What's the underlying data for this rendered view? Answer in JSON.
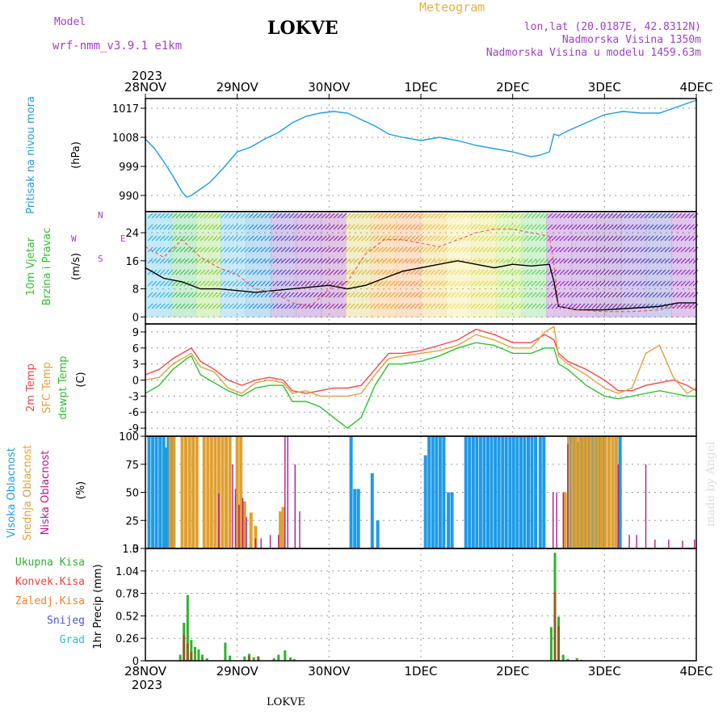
{
  "header": {
    "model_label": "Model",
    "model_name": "wrf-nmm_v3.9.1 e1km",
    "station": "LOKVE",
    "product": "Meteogram",
    "lonlat": "lon,lat (20.0187E, 42.8312N)",
    "elevation": "Nadmorska Visina 1350m",
    "model_elevation": "Nadmorska Visina u modelu 1459.63m",
    "footer": "LOKVE",
    "side_note": "made by Angel"
  },
  "colors": {
    "pressure": "#1e9be6",
    "t2m": "#f04848",
    "tsfc": "#e0a040",
    "dewpt": "#30c030",
    "high_cloud": "#1e9be6",
    "mid_cloud": "#e0a030",
    "low_cloud": "#b01c8c",
    "total_precip": "#30b030",
    "conv_precip": "#f04040",
    "frz_precip": "#f08030",
    "snow": "#5050e0",
    "grad": "#30c0c0"
  },
  "chart_data": [
    {
      "type": "line",
      "panel": "pressure",
      "x_labels_top": [
        "28NOV",
        "29NOV",
        "30NOV",
        "1DEC",
        "2DEC",
        "3DEC",
        "4DEC"
      ],
      "x_labels_bottom": [
        "28NOV",
        "29NOV",
        "30NOV",
        "1DEC",
        "2DEC",
        "3DEC",
        "4DEC"
      ],
      "year_label": "2023",
      "ylabel_left": "Pritisak na nivou mora",
      "unit": "(hPa)",
      "yticks": [
        990,
        999,
        1008,
        1017
      ],
      "ylim": [
        985,
        1020
      ],
      "xlim": [
        0,
        6
      ],
      "series": [
        {
          "name": "Pritisak na nivou mora",
          "x": [
            0,
            0.1,
            0.2,
            0.3,
            0.4,
            0.45,
            0.5,
            0.6,
            0.7,
            0.85,
            1.0,
            1.15,
            1.3,
            1.45,
            1.6,
            1.75,
            1.9,
            2.05,
            2.2,
            2.35,
            2.5,
            2.65,
            2.8,
            3.0,
            3.2,
            3.4,
            3.6,
            3.8,
            4.0,
            4.2,
            4.3,
            4.4,
            4.45,
            4.5,
            4.6,
            4.8,
            5.0,
            5.2,
            5.4,
            5.6,
            5.8,
            6.0
          ],
          "values": [
            1007.5,
            1004.5,
            1000.5,
            996,
            991,
            989.5,
            990,
            992,
            994,
            998.5,
            1003.5,
            1005,
            1007.5,
            1009.5,
            1012.5,
            1014.5,
            1015.5,
            1016,
            1015.5,
            1013.5,
            1011.5,
            1009,
            1008,
            1007,
            1008,
            1007,
            1005.5,
            1004.5,
            1003.5,
            1002,
            1002.5,
            1003.5,
            1009,
            1008.5,
            1010,
            1012.5,
            1015,
            1016,
            1015.5,
            1015.5,
            1017.5,
            1019.5
          ]
        }
      ]
    },
    {
      "type": "line",
      "panel": "wind",
      "ylabel_left": [
        "10m Vjetar",
        "Brzina i Pravac"
      ],
      "unit": "(m/s)",
      "compass": {
        "n": "N",
        "s": "S",
        "e": "E",
        "w": "W"
      },
      "yticks": [
        0,
        8,
        16,
        24
      ],
      "ylim": [
        -2,
        30
      ],
      "xlim": [
        0,
        6
      ],
      "series": [
        {
          "name": "speed",
          "x": [
            0,
            0.2,
            0.4,
            0.6,
            0.8,
            1.0,
            1.2,
            1.4,
            1.6,
            1.8,
            2.0,
            2.2,
            2.4,
            2.6,
            2.8,
            3.0,
            3.2,
            3.4,
            3.6,
            3.8,
            4.0,
            4.2,
            4.4,
            4.45,
            4.5,
            4.7,
            5.0,
            5.3,
            5.6,
            5.8,
            6.0
          ],
          "values": [
            14,
            11,
            10,
            8,
            8,
            7.5,
            7,
            7.5,
            8,
            8.5,
            9,
            8,
            9,
            11,
            13,
            14,
            15,
            16,
            15,
            14,
            15,
            14.5,
            15,
            10,
            3,
            2,
            2,
            2.5,
            3,
            4,
            4
          ]
        },
        {
          "name": "gust",
          "x": [
            0,
            0.2,
            0.4,
            0.6,
            0.8,
            1.0,
            1.2,
            1.4,
            1.6,
            1.8,
            2.0,
            2.2,
            2.4,
            2.6,
            2.8,
            3.0,
            3.2,
            3.4,
            3.6,
            3.8,
            4.0,
            4.2,
            4.4,
            4.45,
            4.5,
            4.7,
            5.0,
            5.3,
            5.6,
            5.8,
            6.0
          ],
          "values": [
            20,
            17,
            22,
            17,
            14,
            12,
            8,
            7,
            4,
            3,
            8,
            10,
            18,
            22,
            22,
            21,
            20,
            22,
            24,
            25,
            25,
            24,
            23,
            15,
            3,
            2,
            1.5,
            1.5,
            2,
            3,
            3
          ]
        }
      ]
    },
    {
      "type": "line",
      "panel": "temperature",
      "ylabel_left": [
        "2m Temp",
        "SFC Temp",
        "dewpt Temp"
      ],
      "unit": "(C)",
      "yticks": [
        -9,
        -6,
        -3,
        0,
        3,
        6,
        9
      ],
      "ylim": [
        -10.5,
        10.5
      ],
      "xlim": [
        0,
        6
      ],
      "series": [
        {
          "name": "2m Temp",
          "x": [
            0,
            0.15,
            0.3,
            0.45,
            0.5,
            0.6,
            0.75,
            0.9,
            1.05,
            1.2,
            1.35,
            1.5,
            1.6,
            1.75,
            1.9,
            2.05,
            2.2,
            2.35,
            2.5,
            2.65,
            2.8,
            3.0,
            3.2,
            3.4,
            3.6,
            3.8,
            4.0,
            4.2,
            4.35,
            4.45,
            4.5,
            4.6,
            4.8,
            5.0,
            5.15,
            5.3,
            5.45,
            5.6,
            5.75,
            5.9,
            6.0
          ],
          "values": [
            1,
            2,
            4,
            5.5,
            6,
            3.5,
            2,
            0,
            -1,
            0,
            0.5,
            0,
            -2,
            -2.5,
            -2,
            -1.5,
            -1.5,
            -1,
            2,
            5,
            5,
            5.5,
            6.5,
            7.5,
            9.5,
            8.5,
            7,
            7,
            8.5,
            7.5,
            5,
            3.5,
            2,
            0,
            -2,
            -2,
            -1,
            -0.5,
            0,
            -1,
            -2
          ]
        },
        {
          "name": "SFC Temp",
          "x": [
            0,
            0.15,
            0.3,
            0.45,
            0.5,
            0.6,
            0.75,
            0.9,
            1.05,
            1.2,
            1.35,
            1.5,
            1.6,
            1.75,
            1.9,
            2.05,
            2.2,
            2.35,
            2.5,
            2.65,
            2.8,
            3.0,
            3.2,
            3.4,
            3.6,
            3.8,
            4.0,
            4.2,
            4.35,
            4.45,
            4.5,
            4.6,
            4.8,
            5.0,
            5.15,
            5.3,
            5.45,
            5.6,
            5.75,
            5.9,
            6.0
          ],
          "values": [
            0,
            0.5,
            3,
            4.5,
            5,
            2.5,
            1.5,
            -1.5,
            -2.5,
            -0.5,
            0,
            -0.5,
            -2.5,
            -2,
            -3,
            -3,
            -3,
            -2.5,
            1,
            4,
            4.5,
            5,
            5.5,
            6.5,
            8.5,
            7.5,
            6,
            6,
            9,
            10,
            4.5,
            3,
            1,
            -1.5,
            -2.5,
            -1.5,
            5,
            6.5,
            0.5,
            -2.5,
            -1.5
          ]
        },
        {
          "name": "dewpt Temp",
          "x": [
            0,
            0.15,
            0.3,
            0.45,
            0.5,
            0.6,
            0.75,
            0.9,
            1.05,
            1.2,
            1.35,
            1.5,
            1.6,
            1.75,
            1.9,
            2.05,
            2.2,
            2.35,
            2.5,
            2.65,
            2.8,
            3.0,
            3.2,
            3.4,
            3.6,
            3.8,
            4.0,
            4.2,
            4.35,
            4.45,
            4.5,
            4.6,
            4.8,
            5.0,
            5.15,
            5.3,
            5.45,
            5.6,
            5.75,
            5.9,
            6.0
          ],
          "values": [
            -2.5,
            -1,
            2,
            4,
            4.5,
            1,
            -0.5,
            -2,
            -3,
            -1.5,
            -1,
            -1,
            -4,
            -4,
            -5,
            -7,
            -9,
            -7,
            -1,
            3,
            3,
            3.5,
            4.5,
            6,
            7,
            6.5,
            5,
            5,
            6,
            6,
            3,
            2,
            -1,
            -3,
            -3.5,
            -3,
            -2.5,
            -2,
            -2.5,
            -3,
            -3
          ]
        }
      ]
    },
    {
      "type": "bar",
      "panel": "cloud",
      "ylabel_left": [
        "Visoka Oblacnost",
        "Srednja Oblacnost",
        "Niska Oblacnost"
      ],
      "unit": "(%)",
      "yticks": [
        0,
        25,
        50,
        75,
        100
      ],
      "ylim": [
        0,
        100
      ],
      "xlim": [
        0,
        6
      ],
      "series": [
        {
          "name": "Visoka Oblacnost",
          "x": [
            0.04,
            0.08,
            0.12,
            0.16,
            0.2,
            0.22,
            0.25,
            0.28,
            0.31,
            2.24,
            2.28,
            2.32,
            2.47,
            2.53,
            3.05,
            3.09,
            3.13,
            3.17,
            3.21,
            3.25,
            3.3,
            3.34,
            3.49,
            3.53,
            3.57,
            3.61,
            3.65,
            3.69,
            3.73,
            3.77,
            3.81,
            3.85,
            3.89,
            3.93,
            3.97,
            4.01,
            4.05,
            4.09,
            4.13,
            4.17,
            4.21,
            4.25,
            4.3,
            4.34,
            4.64,
            4.68,
            4.72,
            4.76,
            4.8,
            4.84,
            4.88,
            4.92,
            4.96,
            5.0,
            5.05,
            5.09,
            5.13,
            5.17
          ],
          "values": [
            100,
            100,
            100,
            100,
            100,
            90,
            100,
            100,
            100,
            100,
            53,
            53,
            67,
            25,
            83,
            100,
            100,
            100,
            100,
            100,
            50,
            50,
            100,
            100,
            100,
            100,
            100,
            100,
            100,
            100,
            100,
            100,
            100,
            100,
            100,
            100,
            100,
            100,
            100,
            100,
            100,
            100,
            100,
            100,
            100,
            100,
            95,
            100,
            100,
            100,
            100,
            100,
            100,
            100,
            100,
            100,
            100,
            100
          ]
        },
        {
          "name": "Srednja Oblacnost",
          "x": [
            0.27,
            0.31,
            0.4,
            0.44,
            0.48,
            0.52,
            0.56,
            0.64,
            0.68,
            0.72,
            0.76,
            0.8,
            0.84,
            0.88,
            0.92,
            1.0,
            1.04,
            1.08,
            1.15,
            1.2,
            1.47,
            1.5,
            4.57,
            4.61,
            4.65,
            4.69,
            4.73,
            4.77,
            4.81,
            4.85,
            4.89,
            4.93,
            4.97,
            5.01,
            5.05,
            5.09,
            5.13
          ],
          "values": [
            100,
            100,
            100,
            100,
            100,
            100,
            100,
            100,
            100,
            100,
            100,
            100,
            100,
            100,
            100,
            100,
            100,
            42,
            32,
            20,
            33,
            37,
            50,
            100,
            100,
            100,
            100,
            100,
            100,
            100,
            100,
            100,
            100,
            100,
            100,
            100,
            100
          ]
        },
        {
          "name": "Niska Oblacnost",
          "x": [
            0.8,
            0.95,
            0.98,
            1.02,
            1.06,
            1.1,
            1.2,
            1.26,
            1.36,
            1.45,
            1.52,
            1.55,
            1.63,
            1.68,
            4.44,
            4.48,
            4.55,
            4.6,
            5.15,
            5.27,
            5.35,
            5.45,
            5.55,
            5.7,
            5.85,
            5.98
          ],
          "values": [
            49,
            75,
            53,
            39,
            45,
            28,
            9,
            9,
            12,
            12,
            100,
            100,
            75,
            33,
            50,
            50,
            50,
            93,
            75,
            12,
            12,
            75,
            8,
            8,
            7,
            8
          ]
        }
      ]
    },
    {
      "type": "bar",
      "panel": "precip",
      "ylabel_left": [
        "Ukupna Kisa",
        "Konvek.Kisa",
        "Zaledj.Kisa",
        "Snijeg",
        "Grad"
      ],
      "unit": "1hr Precip (mm)",
      "yticks": [
        0,
        0.26,
        0.52,
        0.78,
        1.04,
        1.3
      ],
      "ylim": [
        0,
        1.3
      ],
      "xlim": [
        0,
        6
      ],
      "series": [
        {
          "name": "Ukupna Kisa",
          "x": [
            0.38,
            0.42,
            0.46,
            0.5,
            0.54,
            0.58,
            0.62,
            0.67,
            0.87,
            0.92,
            1.08,
            1.13,
            1.18,
            1.23,
            1.4,
            1.45,
            1.52,
            1.58,
            1.62,
            4.42,
            4.46,
            4.5,
            4.55,
            4.6,
            4.7,
            4.75
          ],
          "values": [
            0.07,
            0.44,
            0.76,
            0.24,
            0.16,
            0.13,
            0.07,
            0.03,
            0.21,
            0.06,
            0.05,
            0.08,
            0.04,
            0.05,
            0.03,
            0.07,
            0.12,
            0.04,
            0.02,
            0.39,
            1.25,
            0.51,
            0.07,
            0.02,
            0.03,
            0.01
          ]
        },
        {
          "name": "Konvek.Kisa",
          "x": [
            0.42,
            0.46,
            0.5,
            1.13,
            1.23,
            4.46,
            4.5
          ],
          "values": [
            0.3,
            0.2,
            0.1,
            0.05,
            0.05,
            0.8,
            0.4
          ]
        }
      ]
    }
  ]
}
